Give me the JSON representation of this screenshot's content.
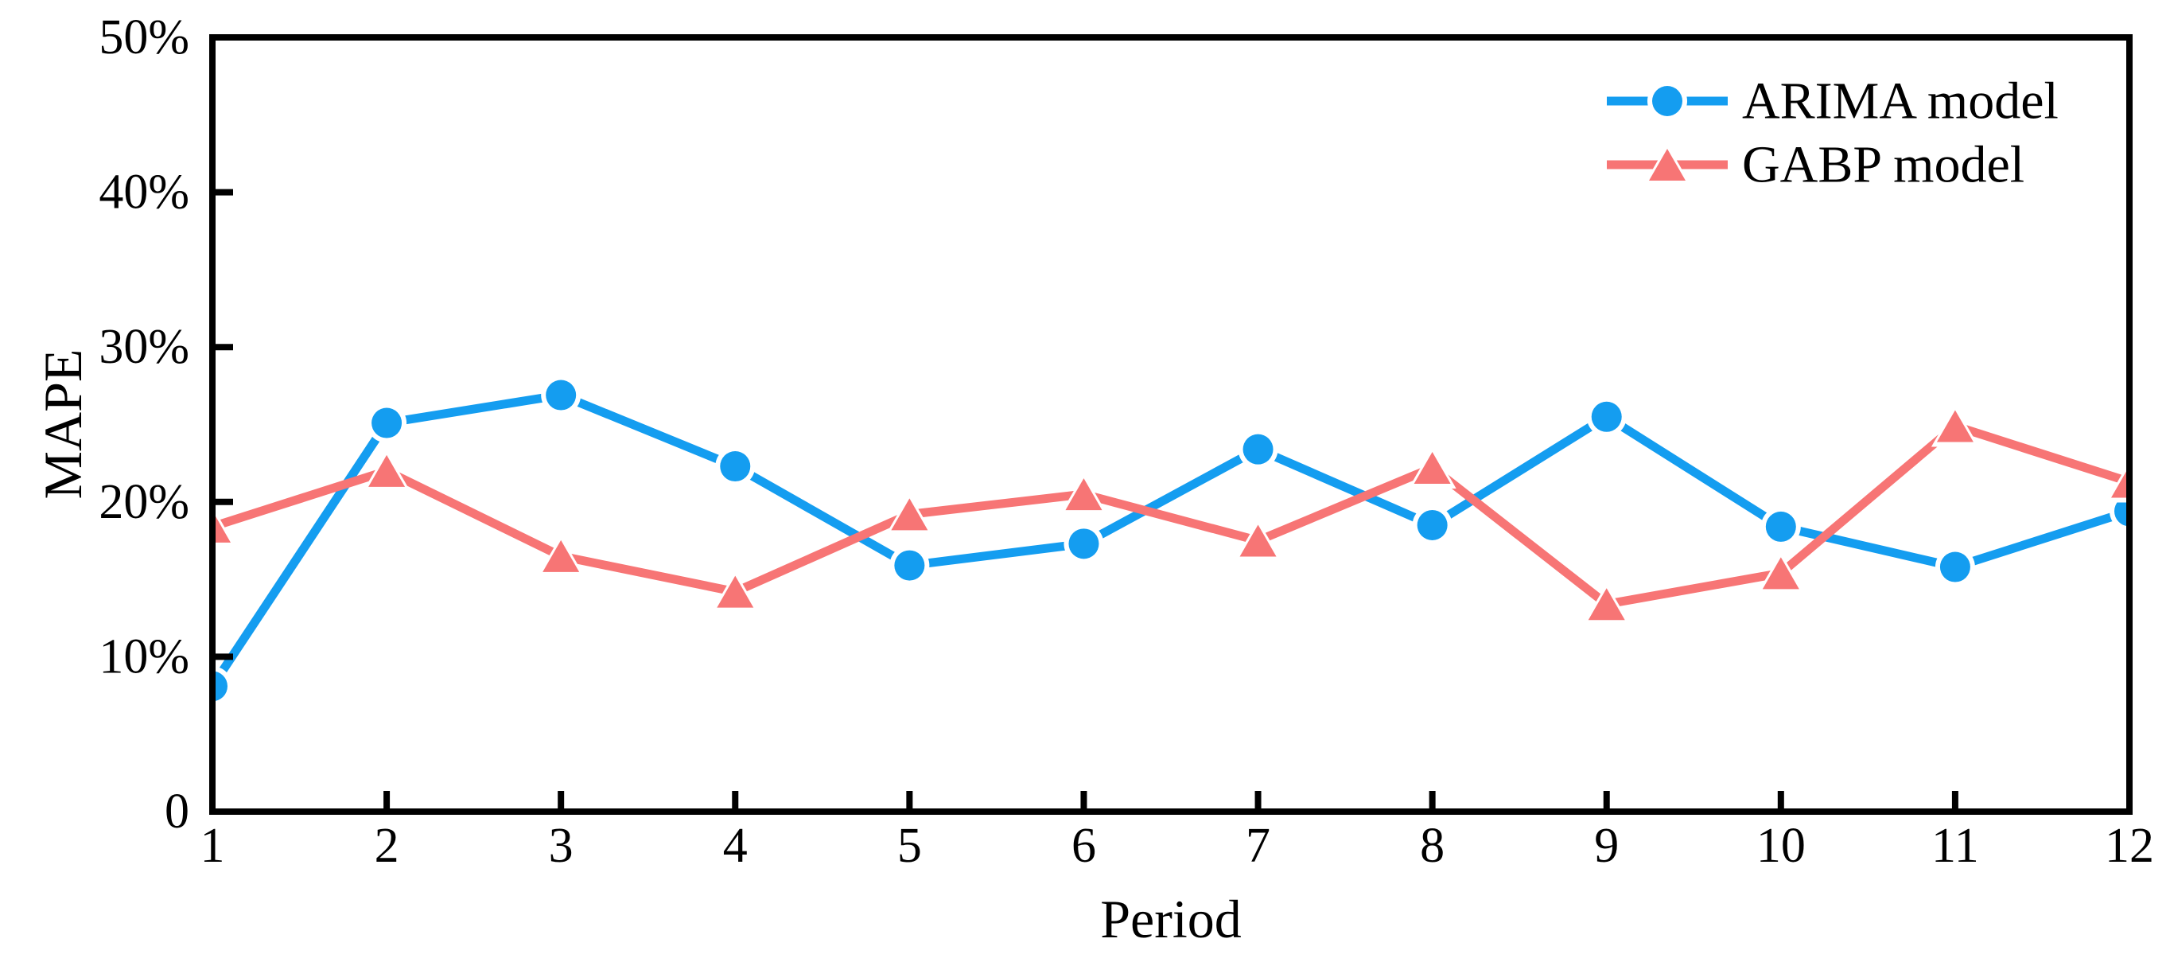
{
  "chart_data": {
    "type": "line",
    "title": "",
    "xlabel": "Period",
    "ylabel": "MAPE",
    "xlim": [
      1,
      12
    ],
    "ylim": [
      0,
      50
    ],
    "grid": false,
    "legend_position": "top-right-inside",
    "x": [
      1,
      2,
      3,
      4,
      5,
      6,
      7,
      8,
      9,
      10,
      11,
      12
    ],
    "x_tick_labels": [
      "1",
      "2",
      "3",
      "4",
      "5",
      "6",
      "7",
      "8",
      "9",
      "10",
      "11",
      "12"
    ],
    "y_ticks": [
      {
        "value": 0,
        "label": "0"
      },
      {
        "value": 10,
        "label": "10%"
      },
      {
        "value": 20,
        "label": "20%"
      },
      {
        "value": 30,
        "label": "30%"
      },
      {
        "value": 40,
        "label": "40%"
      },
      {
        "value": 50,
        "label": "50%"
      }
    ],
    "y_unit": "percent",
    "series": [
      {
        "name": "ARIMA model",
        "marker": "circle",
        "color": "#149df0",
        "values": [
          8.1,
          25.1,
          26.9,
          22.3,
          15.9,
          17.3,
          23.4,
          18.5,
          25.5,
          18.4,
          15.8,
          19.4
        ]
      },
      {
        "name": "GABP model",
        "marker": "triangle-up",
        "color": "#f77575",
        "values": [
          18.4,
          22.0,
          16.5,
          14.2,
          19.2,
          20.5,
          17.5,
          22.2,
          13.4,
          15.4,
          24.9,
          21.3
        ]
      }
    ]
  },
  "colors": {
    "axis": "#000000",
    "text": "#000000",
    "background": "#ffffff",
    "marker_halo": "#ffffff"
  }
}
